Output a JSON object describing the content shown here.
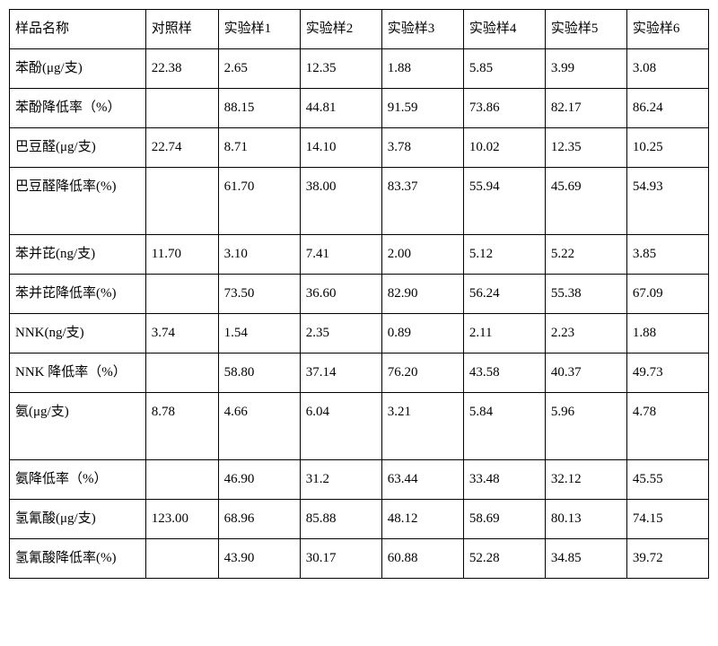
{
  "table": {
    "columns": [
      "样品名称",
      "对照样",
      "实验样1",
      "实验样2",
      "实验样3",
      "实验样4",
      "实验样5",
      "实验样6"
    ],
    "rows": [
      [
        "苯酚(μg/支)",
        "22.38",
        "2.65",
        "12.35",
        "1.88",
        "5.85",
        "3.99",
        "3.08"
      ],
      [
        "苯酚降低率（%）",
        "",
        "88.15",
        "44.81",
        "91.59",
        "73.86",
        "82.17",
        "86.24"
      ],
      [
        "巴豆醛(μg/支)",
        "22.74",
        "8.71",
        "14.10",
        "3.78",
        "10.02",
        "12.35",
        "10.25"
      ],
      [
        "巴豆醛降低率(%)",
        "",
        "61.70",
        "38.00",
        "83.37",
        "55.94",
        "45.69",
        "54.93"
      ],
      [
        "苯并芘(ng/支)",
        "11.70",
        "3.10",
        "7.41",
        "2.00",
        "5.12",
        "5.22",
        "3.85"
      ],
      [
        "苯并芘降低率(%)",
        "",
        "73.50",
        "36.60",
        "82.90",
        "56.24",
        "55.38",
        "67.09"
      ],
      [
        "NNK(ng/支)",
        "3.74",
        "1.54",
        "2.35",
        "0.89",
        "2.11",
        "2.23",
        "1.88"
      ],
      [
        "NNK 降低率（%）",
        "",
        "58.80",
        "37.14",
        "76.20",
        "43.58",
        "40.37",
        "49.73"
      ],
      [
        "氨(μg/支)",
        "8.78",
        "4.66",
        "6.04",
        "3.21",
        "5.84",
        "5.96",
        "4.78"
      ],
      [
        "氨降低率（%）",
        "",
        "46.90",
        "31.2",
        "63.44",
        "33.48",
        "32.12",
        "45.55"
      ],
      [
        "氢氰酸(μg/支)",
        "123.00",
        "68.96",
        "85.88",
        "48.12",
        "58.69",
        "80.13",
        "74.15"
      ],
      [
        "氢氰酸降低率(%)",
        "",
        "43.90",
        "30.17",
        "60.88",
        "52.28",
        "34.85",
        "39.72"
      ]
    ],
    "tall_rows": [
      3,
      8
    ],
    "font_size": 15,
    "border_color": "#000000",
    "background_color": "#ffffff"
  }
}
